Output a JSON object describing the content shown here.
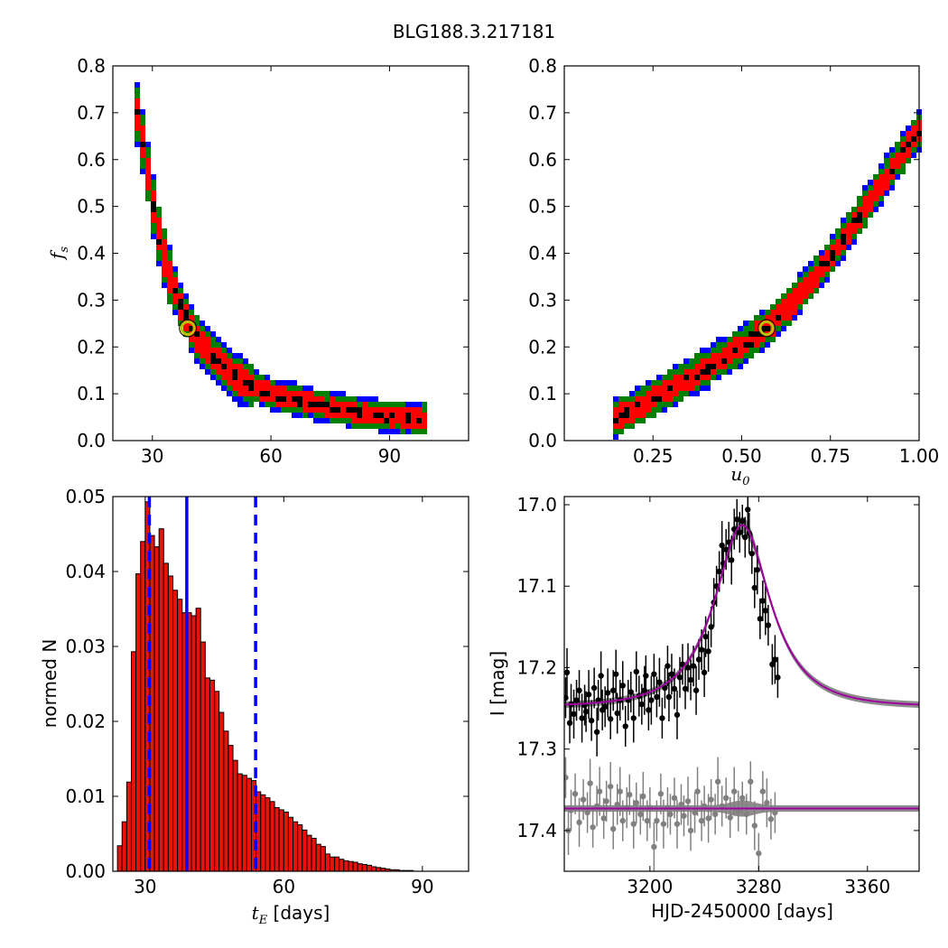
{
  "title": "BLG188.3.217181",
  "chart_data": [
    {
      "id": "fs_vs_tE",
      "type": "heatmap",
      "description_levels": [
        "black",
        "red",
        "green",
        "blue"
      ],
      "xlabel": "",
      "ylabel": "f_s",
      "xlim": [
        20,
        110
      ],
      "ylim": [
        0.0,
        0.8
      ],
      "xticks": [
        30,
        60,
        90
      ],
      "yticks": [
        0.0,
        0.1,
        0.2,
        0.3,
        0.4,
        0.5,
        0.6,
        0.7,
        0.8
      ],
      "ridge": [
        [
          25,
          0.74
        ],
        [
          28,
          0.62
        ],
        [
          31,
          0.46
        ],
        [
          34,
          0.36
        ],
        [
          37,
          0.29
        ],
        [
          41,
          0.22
        ],
        [
          46,
          0.17
        ],
        [
          52,
          0.13
        ],
        [
          60,
          0.1
        ],
        [
          70,
          0.08
        ],
        [
          80,
          0.062
        ],
        [
          90,
          0.05
        ],
        [
          100,
          0.045
        ]
      ],
      "best_fit": {
        "x": 39,
        "y": 0.24
      },
      "colors": {
        "inner": "#000000",
        "sigma1": "#ff0000",
        "sigma2": "#007f00",
        "sigma3": "#0000ff",
        "marker": "#bfbf00"
      }
    },
    {
      "id": "fs_vs_u0",
      "type": "heatmap",
      "xlabel": "u_0",
      "ylabel": "",
      "xlim": [
        0.0,
        1.0
      ],
      "ylim": [
        0.0,
        0.8
      ],
      "xticks": [
        0.25,
        0.5,
        0.75,
        1.0
      ],
      "xtick_labels": [
        "0.25",
        "0.50",
        "0.75",
        "1.00"
      ],
      "yticks": [
        0.0,
        0.1,
        0.2,
        0.3,
        0.4,
        0.5,
        0.6,
        0.7,
        0.8
      ],
      "ridge": [
        [
          0.14,
          0.045
        ],
        [
          0.2,
          0.07
        ],
        [
          0.3,
          0.11
        ],
        [
          0.4,
          0.155
        ],
        [
          0.5,
          0.2
        ],
        [
          0.57,
          0.24
        ],
        [
          0.65,
          0.3
        ],
        [
          0.75,
          0.39
        ],
        [
          0.85,
          0.5
        ],
        [
          0.95,
          0.61
        ],
        [
          1.0,
          0.66
        ]
      ],
      "best_fit": {
        "x": 0.57,
        "y": 0.24
      },
      "colors": {
        "inner": "#000000",
        "sigma1": "#ff0000",
        "sigma2": "#007f00",
        "sigma3": "#0000ff",
        "marker": "#bfbf00"
      }
    },
    {
      "id": "tE_histogram",
      "type": "bar",
      "xlabel": "t_E [days]",
      "xlabel_suffix": "[days]",
      "ylabel": "normed N",
      "xlim": [
        23,
        100
      ],
      "ylim": [
        0.0,
        0.05
      ],
      "xticks": [
        30,
        60,
        90
      ],
      "yticks": [
        0.0,
        0.01,
        0.02,
        0.03,
        0.04,
        0.05
      ],
      "ytick_labels": [
        "0.00",
        "0.01",
        "0.02",
        "0.03",
        "0.04",
        "0.05"
      ],
      "bin_start": 24,
      "bin_width": 1,
      "values": [
        0.0034,
        0.0066,
        0.0119,
        0.0293,
        0.0397,
        0.044,
        0.0493,
        0.0448,
        0.0433,
        0.0457,
        0.0411,
        0.0394,
        0.0375,
        0.0363,
        0.0345,
        0.0345,
        0.0341,
        0.0351,
        0.0306,
        0.0258,
        0.0255,
        0.024,
        0.0212,
        0.0187,
        0.0168,
        0.0148,
        0.013,
        0.0128,
        0.0124,
        0.0121,
        0.0106,
        0.0102,
        0.0098,
        0.0093,
        0.0085,
        0.0082,
        0.0079,
        0.0072,
        0.0066,
        0.0062,
        0.0055,
        0.0048,
        0.0044,
        0.0036,
        0.0033,
        0.0023,
        0.0019,
        0.0019,
        0.0016,
        0.0014,
        0.0013,
        0.0012,
        0.001,
        0.0009,
        0.0008,
        0.0006,
        0.0005,
        0.0004,
        0.0003,
        0.0002,
        0.0002,
        0.0001,
        0.0001,
        0.0001,
        0.0,
        0.0,
        0.0,
        0.0,
        0.0,
        0.0,
        0.0,
        0.0,
        0.0,
        0.0,
        0.0,
        0.0
      ],
      "vlines": [
        {
          "x": 39.0,
          "style": "solid"
        },
        {
          "x": 30.9,
          "style": "dashed"
        },
        {
          "x": 53.9,
          "style": "dashed"
        }
      ],
      "colors": {
        "bar": "#e8120a",
        "edge": "#000000",
        "vline": "#0000ff"
      }
    },
    {
      "id": "light_curve",
      "type": "scatter",
      "xlabel": "HJD-2450000 [days]",
      "ylabel": "I [mag]",
      "xlim": [
        3137,
        3398
      ],
      "ylim": [
        17.45,
        16.99
      ],
      "xticks": [
        3200,
        3280,
        3360
      ],
      "yticks": [
        17.0,
        17.1,
        17.2,
        17.3,
        17.4
      ],
      "model": {
        "baseline": 17.248,
        "peak_mag": 17.025,
        "t0": 3268,
        "tE": 39,
        "u0": 0.57
      },
      "residual_offset": 17.373,
      "data_points": [
        [
          3138,
          17.237,
          0.025
        ],
        [
          3139,
          17.206,
          0.03
        ],
        [
          3141,
          17.268,
          0.025
        ],
        [
          3142,
          17.245,
          0.025
        ],
        [
          3144,
          17.257,
          0.03
        ],
        [
          3146,
          17.24,
          0.025
        ],
        [
          3148,
          17.228,
          0.025
        ],
        [
          3150,
          17.262,
          0.03
        ],
        [
          3152,
          17.246,
          0.025
        ],
        [
          3153,
          17.254,
          0.025
        ],
        [
          3155,
          17.233,
          0.03
        ],
        [
          3157,
          17.265,
          0.025
        ],
        [
          3159,
          17.225,
          0.025
        ],
        [
          3161,
          17.279,
          0.03
        ],
        [
          3162,
          17.24,
          0.025
        ],
        [
          3164,
          17.21,
          0.03
        ],
        [
          3165,
          17.252,
          0.025
        ],
        [
          3167,
          17.248,
          0.025
        ],
        [
          3169,
          17.231,
          0.03
        ],
        [
          3171,
          17.263,
          0.025
        ],
        [
          3173,
          17.228,
          0.025
        ],
        [
          3175,
          17.208,
          0.03
        ],
        [
          3176,
          17.256,
          0.025
        ],
        [
          3178,
          17.24,
          0.025
        ],
        [
          3180,
          17.222,
          0.03
        ],
        [
          3182,
          17.272,
          0.025
        ],
        [
          3184,
          17.24,
          0.025
        ],
        [
          3186,
          17.23,
          0.025
        ],
        [
          3188,
          17.262,
          0.03
        ],
        [
          3190,
          17.205,
          0.025
        ],
        [
          3192,
          17.235,
          0.025
        ],
        [
          3194,
          17.245,
          0.025
        ],
        [
          3196,
          17.228,
          0.03
        ],
        [
          3197,
          17.21,
          0.025
        ],
        [
          3199,
          17.252,
          0.025
        ],
        [
          3201,
          17.24,
          0.03
        ],
        [
          3203,
          17.208,
          0.025
        ],
        [
          3205,
          17.236,
          0.025
        ],
        [
          3207,
          17.218,
          0.03
        ],
        [
          3209,
          17.262,
          0.025
        ],
        [
          3211,
          17.225,
          0.025
        ],
        [
          3213,
          17.198,
          0.025
        ],
        [
          3214,
          17.236,
          0.03
        ],
        [
          3216,
          17.208,
          0.025
        ],
        [
          3218,
          17.226,
          0.025
        ],
        [
          3220,
          17.258,
          0.03
        ],
        [
          3222,
          17.212,
          0.025
        ],
        [
          3224,
          17.196,
          0.025
        ],
        [
          3226,
          17.226,
          0.025
        ],
        [
          3228,
          17.2,
          0.03
        ],
        [
          3230,
          17.215,
          0.025
        ],
        [
          3232,
          17.198,
          0.025
        ],
        [
          3234,
          17.228,
          0.03
        ],
        [
          3236,
          17.19,
          0.025
        ],
        [
          3238,
          17.178,
          0.025
        ],
        [
          3240,
          17.206,
          0.03
        ],
        [
          3241,
          17.162,
          0.025
        ],
        [
          3243,
          17.18,
          0.025
        ],
        [
          3245,
          17.15,
          0.025
        ],
        [
          3247,
          17.12,
          0.03
        ],
        [
          3249,
          17.1,
          0.025
        ],
        [
          3251,
          17.082,
          0.025
        ],
        [
          3253,
          17.05,
          0.03
        ],
        [
          3254,
          17.072,
          0.025
        ],
        [
          3256,
          17.055,
          0.025
        ],
        [
          3258,
          17.046,
          0.025
        ],
        [
          3260,
          17.068,
          0.03
        ],
        [
          3262,
          17.03,
          0.025
        ],
        [
          3264,
          17.018,
          0.025
        ],
        [
          3266,
          17.034,
          0.025
        ],
        [
          3268,
          17.02,
          0.02
        ],
        [
          3270,
          17.04,
          0.025
        ],
        [
          3272,
          17.006,
          0.03
        ],
        [
          3273,
          17.035,
          0.025
        ],
        [
          3275,
          17.06,
          0.025
        ],
        [
          3277,
          17.102,
          0.025
        ],
        [
          3279,
          17.08,
          0.03
        ],
        [
          3281,
          17.14,
          0.025
        ],
        [
          3283,
          17.118,
          0.025
        ],
        [
          3285,
          17.13,
          0.03
        ],
        [
          3287,
          17.148,
          0.025
        ],
        [
          3290,
          17.196,
          0.025
        ],
        [
          3292,
          17.19,
          0.03
        ],
        [
          3294,
          17.212,
          0.025
        ]
      ],
      "residual_points": [
        [
          3138,
          17.335,
          0.025
        ],
        [
          3140,
          17.4,
          0.03
        ],
        [
          3142,
          17.375,
          0.025
        ],
        [
          3145,
          17.355,
          0.025
        ],
        [
          3148,
          17.39,
          0.03
        ],
        [
          3151,
          17.362,
          0.025
        ],
        [
          3154,
          17.378,
          0.025
        ],
        [
          3156,
          17.342,
          0.03
        ],
        [
          3158,
          17.396,
          0.025
        ],
        [
          3161,
          17.37,
          0.025
        ],
        [
          3163,
          17.352,
          0.03
        ],
        [
          3166,
          17.385,
          0.025
        ],
        [
          3168,
          17.364,
          0.025
        ],
        [
          3171,
          17.346,
          0.03
        ],
        [
          3173,
          17.398,
          0.025
        ],
        [
          3176,
          17.368,
          0.025
        ],
        [
          3178,
          17.352,
          0.03
        ],
        [
          3180,
          17.388,
          0.025
        ],
        [
          3183,
          17.372,
          0.025
        ],
        [
          3185,
          17.356,
          0.025
        ],
        [
          3188,
          17.392,
          0.03
        ],
        [
          3190,
          17.366,
          0.025
        ],
        [
          3193,
          17.38,
          0.025
        ],
        [
          3195,
          17.358,
          0.03
        ],
        [
          3198,
          17.388,
          0.025
        ],
        [
          3200,
          17.372,
          0.025
        ],
        [
          3203,
          17.42,
          0.03
        ],
        [
          3205,
          17.388,
          0.025
        ],
        [
          3208,
          17.355,
          0.025
        ],
        [
          3210,
          17.392,
          0.03
        ],
        [
          3213,
          17.372,
          0.025
        ],
        [
          3215,
          17.38,
          0.025
        ],
        [
          3218,
          17.36,
          0.025
        ],
        [
          3220,
          17.392,
          0.03
        ],
        [
          3223,
          17.368,
          0.025
        ],
        [
          3225,
          17.382,
          0.025
        ],
        [
          3228,
          17.364,
          0.03
        ],
        [
          3230,
          17.4,
          0.025
        ],
        [
          3233,
          17.378,
          0.025
        ],
        [
          3235,
          17.352,
          0.03
        ],
        [
          3238,
          17.388,
          0.025
        ],
        [
          3240,
          17.37,
          0.025
        ],
        [
          3243,
          17.385,
          0.03
        ],
        [
          3245,
          17.362,
          0.025
        ],
        [
          3248,
          17.38,
          0.025
        ],
        [
          3250,
          17.34,
          0.03
        ],
        [
          3253,
          17.37,
          0.025
        ],
        [
          3256,
          17.36,
          0.025
        ],
        [
          3259,
          17.384,
          0.025
        ],
        [
          3262,
          17.352,
          0.03
        ],
        [
          3265,
          17.376,
          0.025
        ],
        [
          3268,
          17.36,
          0.02
        ],
        [
          3271,
          17.38,
          0.025
        ],
        [
          3274,
          17.34,
          0.025
        ],
        [
          3277,
          17.394,
          0.03
        ],
        [
          3280,
          17.428,
          0.025
        ],
        [
          3283,
          17.352,
          0.025
        ],
        [
          3286,
          17.366,
          0.03
        ],
        [
          3289,
          17.386,
          0.025
        ],
        [
          3292,
          17.378,
          0.025
        ]
      ],
      "colors": {
        "data": "#000000",
        "residual": "#808080",
        "model": "#a000a0",
        "band": "#808080"
      }
    }
  ]
}
